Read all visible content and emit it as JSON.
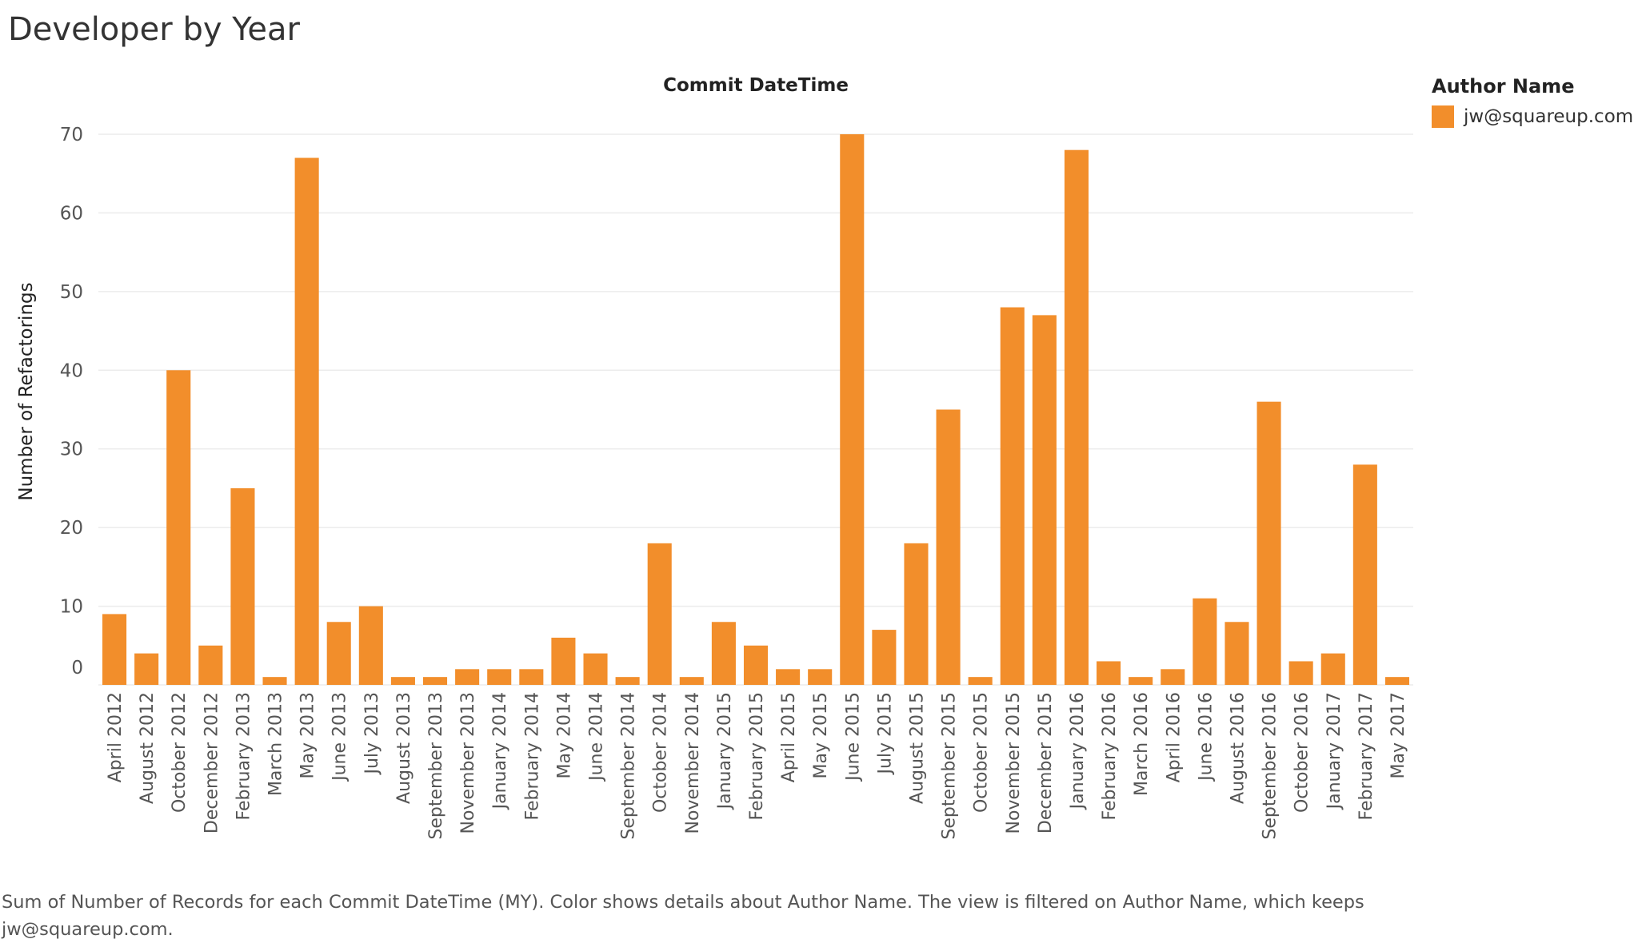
{
  "title": "Developer by Year",
  "column_header": "Commit DateTime",
  "legend": {
    "title": "Author Name",
    "items": [
      {
        "label": "jw@squareup.com",
        "color": "#f28e2b"
      }
    ]
  },
  "caption": "Sum of Number of Records for each Commit DateTime (MY).  Color shows details about Author Name. The view is filtered on Author Name, which keeps jw@squareup.com.",
  "chart_data": {
    "type": "bar",
    "ylabel": "Number of Refactorings",
    "xlabel": "",
    "ylim": [
      0,
      70
    ],
    "yticks": [
      0,
      10,
      20,
      30,
      40,
      50,
      60,
      70
    ],
    "grid": true,
    "bar_color": "#f28e2b",
    "categories": [
      "April 2012",
      "August 2012",
      "October 2012",
      "December 2012",
      "February 2013",
      "March 2013",
      "May 2013",
      "June 2013",
      "July 2013",
      "August 2013",
      "September 2013",
      "November 2013",
      "January 2014",
      "February 2014",
      "May 2014",
      "June 2014",
      "September 2014",
      "October 2014",
      "November 2014",
      "January 2015",
      "February 2015",
      "April 2015",
      "May 2015",
      "June 2015",
      "July 2015",
      "August 2015",
      "September 2015",
      "October 2015",
      "November 2015",
      "December 2015",
      "January 2016",
      "February 2016",
      "March 2016",
      "April 2016",
      "June 2016",
      "August 2016",
      "September 2016",
      "October 2016",
      "January 2017",
      "February 2017",
      "May 2017"
    ],
    "series": [
      {
        "name": "jw@squareup.com",
        "values": [
          9,
          4,
          40,
          5,
          25,
          1,
          67,
          8,
          10,
          1,
          1,
          2,
          2,
          2,
          6,
          4,
          1,
          18,
          1,
          8,
          5,
          2,
          2,
          70,
          7,
          18,
          35,
          1,
          48,
          47,
          68,
          3,
          1,
          2,
          11,
          8,
          36,
          3,
          4,
          28,
          1
        ]
      }
    ]
  }
}
